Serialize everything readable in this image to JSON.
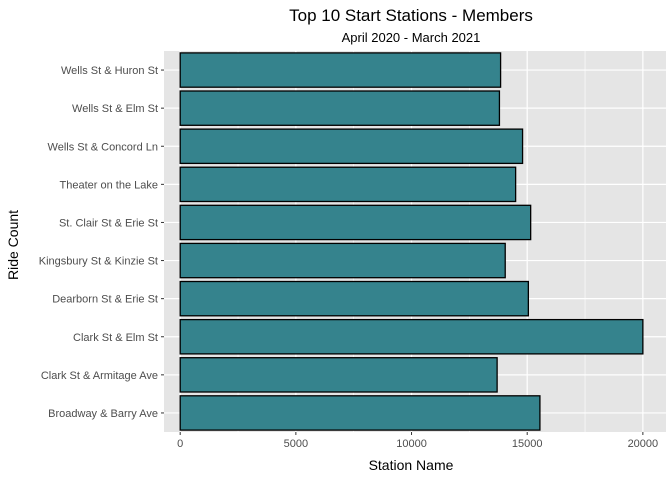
{
  "chart_data": {
    "type": "bar",
    "orientation": "horizontal",
    "title": "Top 10 Start Stations - Members",
    "subtitle": "April 2020 - March 2021",
    "xlabel": "Station Name",
    "ylabel": "Ride Count",
    "categories": [
      "Wells St & Huron St",
      "Wells St & Elm St",
      "Wells St & Concord Ln",
      "Theater on the Lake",
      "St. Clair St & Erie St",
      "Kingsbury St & Kinzie St",
      "Dearborn St & Erie St",
      "Clark St & Elm St",
      "Clark St & Armitage Ave",
      "Broadway & Barry Ave"
    ],
    "values": [
      13850,
      13800,
      14800,
      14500,
      15150,
      14050,
      15050,
      20000,
      13700,
      15550
    ],
    "xlim": [
      -700,
      21000
    ],
    "xticks": [
      0,
      5000,
      10000,
      15000,
      20000
    ],
    "xtick_labels": [
      "0",
      "5000",
      "10000",
      "15000",
      "20000"
    ],
    "grid": true,
    "colors": {
      "bar_fill": "#35838d",
      "bar_stroke": "#000000",
      "panel_bg": "#e5e5e5",
      "grid_major": "#ffffff",
      "tick_label": "#4d4d4d"
    }
  }
}
